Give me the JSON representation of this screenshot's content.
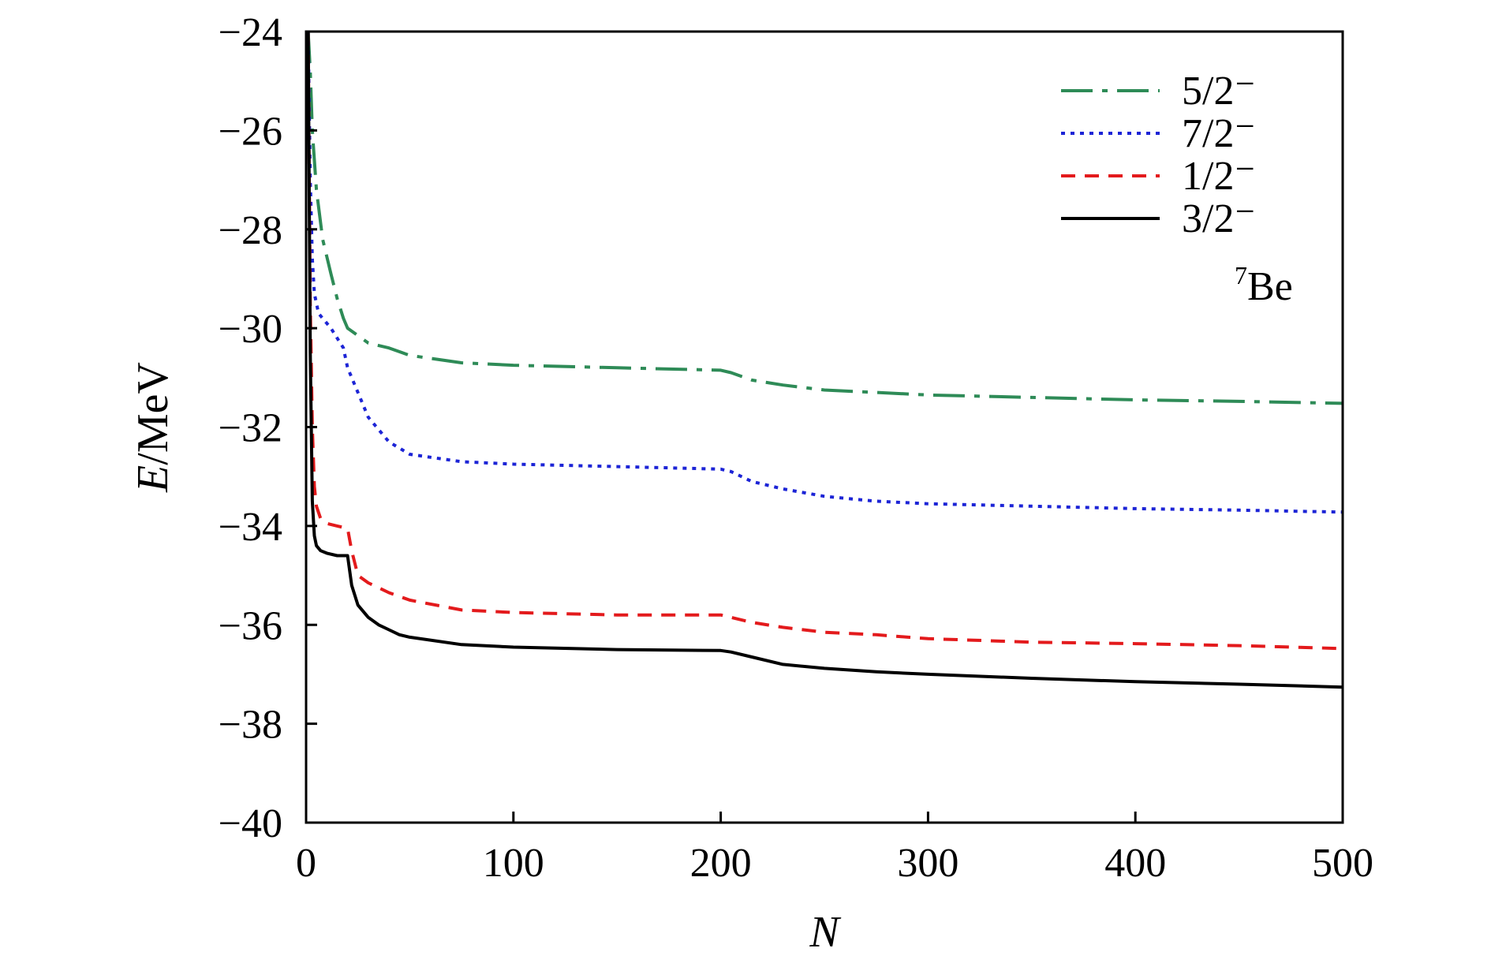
{
  "chart_data": {
    "type": "line",
    "xlabel": "N",
    "ylabel_italic": "E",
    "ylabel_rest": "/MeV",
    "xlim": [
      0,
      500
    ],
    "ylim": [
      -40,
      -24
    ],
    "xticks": [
      0,
      100,
      200,
      300,
      400,
      500
    ],
    "yticks": [
      -24,
      -26,
      -28,
      -30,
      -32,
      -34,
      -36,
      -38,
      -40
    ],
    "xtick_labels": [
      "0",
      "100",
      "200",
      "300",
      "400",
      "500"
    ],
    "ytick_labels": [
      "−24",
      "−26",
      "−28",
      "−30",
      "−32",
      "−34",
      "−36",
      "−38",
      "−40"
    ],
    "grid": false,
    "legend_position": "top-right",
    "annotation": {
      "sup": "7",
      "text": "Be"
    },
    "series": [
      {
        "name": "5/2⁻",
        "color": "#2e8b57",
        "style": "dashdot",
        "x": [
          1,
          2,
          3,
          5,
          8,
          12,
          15,
          18,
          20,
          25,
          30,
          40,
          50,
          75,
          100,
          150,
          200,
          205,
          215,
          230,
          250,
          275,
          300,
          350,
          400,
          450,
          500
        ],
        "y": [
          -24.0,
          -24.8,
          -26.0,
          -27.2,
          -28.2,
          -28.9,
          -29.4,
          -29.8,
          -30.0,
          -30.15,
          -30.3,
          -30.4,
          -30.55,
          -30.7,
          -30.75,
          -30.8,
          -30.85,
          -30.9,
          -31.05,
          -31.15,
          -31.25,
          -31.3,
          -31.35,
          -31.4,
          -31.45,
          -31.48,
          -31.52
        ]
      },
      {
        "name": "7/2⁻",
        "color": "#1c24d6",
        "style": "dotted",
        "x": [
          1,
          2,
          3,
          4,
          6,
          8,
          12,
          15,
          18,
          20,
          25,
          30,
          40,
          50,
          75,
          100,
          150,
          200,
          205,
          215,
          230,
          250,
          275,
          300,
          350,
          400,
          450,
          500
        ],
        "y": [
          -24.0,
          -27.0,
          -28.6,
          -29.3,
          -29.7,
          -29.8,
          -30.0,
          -30.2,
          -30.4,
          -30.8,
          -31.3,
          -31.8,
          -32.3,
          -32.55,
          -32.7,
          -32.75,
          -32.8,
          -32.85,
          -32.9,
          -33.1,
          -33.25,
          -33.4,
          -33.5,
          -33.55,
          -33.6,
          -33.65,
          -33.68,
          -33.72
        ]
      },
      {
        "name": "1/2⁻",
        "color": "#e31a1c",
        "style": "dashed",
        "x": [
          1,
          2,
          3,
          4,
          5,
          7,
          10,
          15,
          20,
          22,
          25,
          30,
          40,
          50,
          75,
          100,
          150,
          200,
          205,
          215,
          230,
          250,
          275,
          300,
          350,
          400,
          450,
          500
        ],
        "y": [
          -24.0,
          -29.5,
          -32.0,
          -33.2,
          -33.6,
          -33.85,
          -33.95,
          -34.0,
          -34.05,
          -34.5,
          -35.0,
          -35.15,
          -35.35,
          -35.5,
          -35.7,
          -35.75,
          -35.8,
          -35.8,
          -35.85,
          -35.95,
          -36.05,
          -36.15,
          -36.2,
          -36.28,
          -36.35,
          -36.38,
          -36.42,
          -36.48
        ]
      },
      {
        "name": "3/2⁻",
        "color": "#000000",
        "style": "solid",
        "x": [
          1,
          2,
          3,
          4,
          5,
          7,
          10,
          15,
          20,
          22,
          25,
          30,
          35,
          40,
          45,
          50,
          75,
          100,
          150,
          200,
          205,
          215,
          230,
          250,
          275,
          300,
          350,
          400,
          450,
          500
        ],
        "y": [
          -24.0,
          -30.5,
          -33.5,
          -34.2,
          -34.4,
          -34.5,
          -34.55,
          -34.6,
          -34.6,
          -35.2,
          -35.6,
          -35.85,
          -36.0,
          -36.1,
          -36.2,
          -36.25,
          -36.4,
          -36.45,
          -36.5,
          -36.52,
          -36.55,
          -36.65,
          -36.8,
          -36.88,
          -36.95,
          -37.0,
          -37.08,
          -37.15,
          -37.2,
          -37.26
        ]
      }
    ]
  }
}
